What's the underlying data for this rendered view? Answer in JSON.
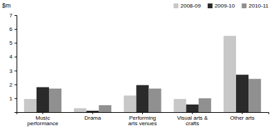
{
  "chart_data": {
    "type": "bar",
    "ylabel": "$m",
    "categories": [
      "Music\nperformance",
      "Drama",
      "Performing\narts venues",
      "Visual arts &\ncrafts",
      "Other arts"
    ],
    "series": [
      {
        "name": "2008-09",
        "color": "#c8c8c8",
        "values": [
          0.95,
          0.28,
          1.2,
          0.95,
          5.5
        ]
      },
      {
        "name": "2009-10",
        "color": "#2a2a2a",
        "values": [
          1.8,
          0.1,
          1.95,
          0.55,
          2.7
        ]
      },
      {
        "name": "2010-11",
        "color": "#909090",
        "values": [
          1.7,
          0.5,
          1.7,
          1.0,
          2.4
        ]
      }
    ],
    "ylim": [
      0,
      7
    ],
    "yticks": [
      {
        "value": 0,
        "label": null
      },
      1,
      2,
      3,
      4,
      5,
      6,
      7
    ],
    "grid": false,
    "legend": "upper right"
  }
}
